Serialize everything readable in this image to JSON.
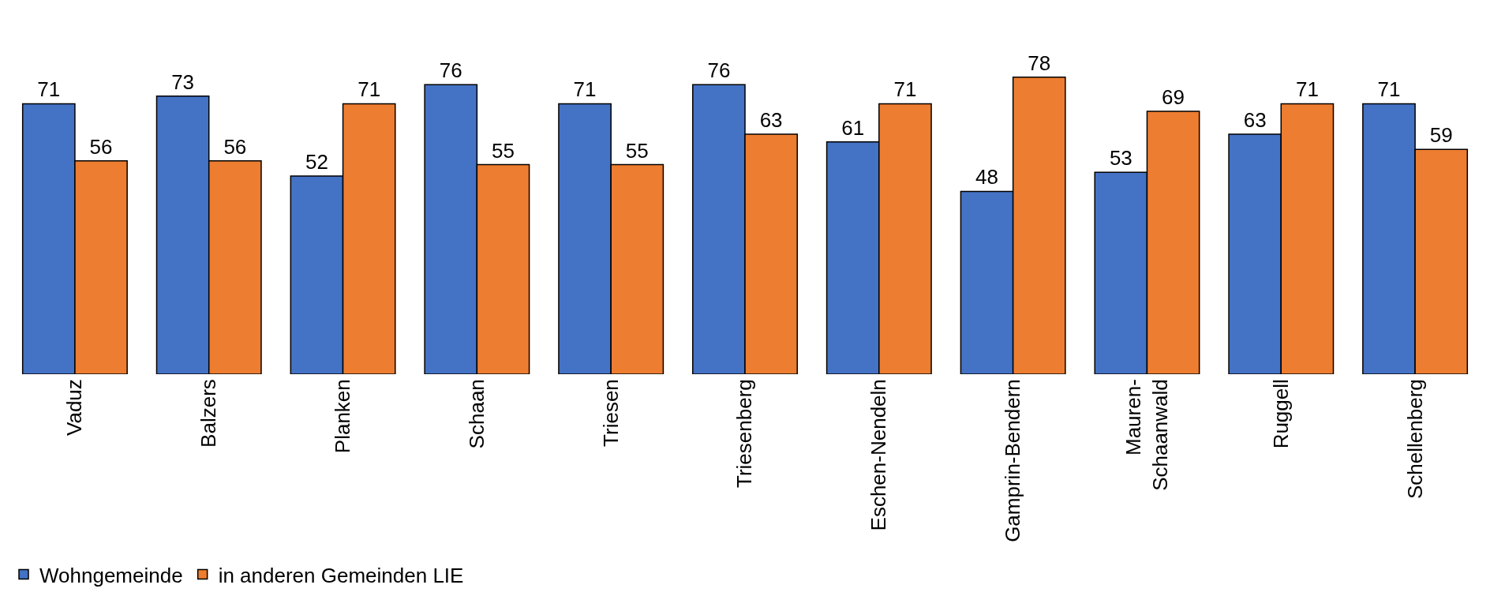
{
  "chart_data": {
    "type": "bar",
    "categories": [
      "Vaduz",
      "Balzers",
      "Planken",
      "Schaan",
      "Triesen",
      "Triesenberg",
      "Eschen-Nendeln",
      "Gamprin-Bendern",
      "Mauren-\nSchaanwald",
      "Ruggell",
      "Schellenberg"
    ],
    "series": [
      {
        "name": "Wohngemeinde",
        "color": "#4472c4",
        "values": [
          71,
          73,
          52,
          76,
          71,
          76,
          61,
          48,
          53,
          63,
          71
        ]
      },
      {
        "name": "in anderen Gemeinden LIE",
        "color": "#ed7d31",
        "values": [
          56,
          56,
          71,
          55,
          55,
          63,
          71,
          78,
          69,
          71,
          59
        ]
      }
    ],
    "data_labels": true,
    "legend": "bottom left"
  }
}
